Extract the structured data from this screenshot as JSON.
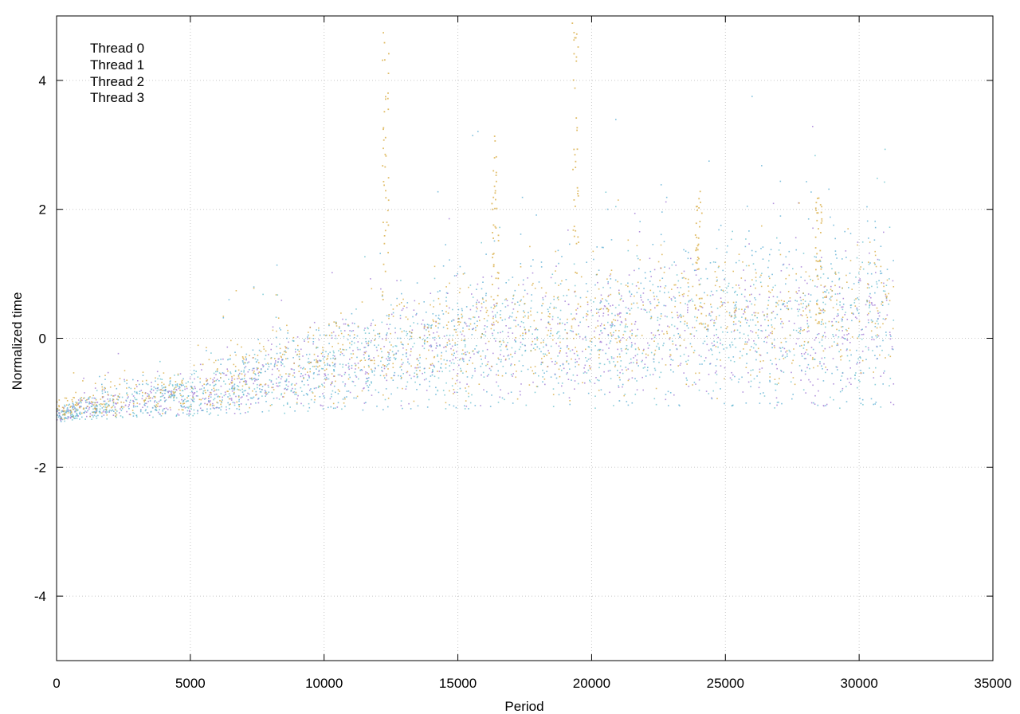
{
  "chart_data": {
    "type": "scatter",
    "title": "",
    "xlabel": "Period",
    "ylabel": "Normalized time",
    "xlim": [
      0,
      35000
    ],
    "ylim": [
      -5,
      5
    ],
    "xticks": [
      0,
      5000,
      10000,
      15000,
      20000,
      25000,
      30000,
      35000
    ],
    "yticks": [
      -4,
      -2,
      0,
      2,
      4
    ],
    "grid": true,
    "legend_position": "top-left",
    "series": [
      {
        "name": "Thread 0",
        "color": "#9467d0",
        "x_range": [
          0,
          31300
        ],
        "baseline": [
          [
            0,
            -1.3
          ],
          [
            2000,
            -1.22
          ],
          [
            5000,
            -1.2
          ],
          [
            10000,
            -1.12
          ],
          [
            15000,
            -1.1
          ],
          [
            20000,
            -1.05
          ],
          [
            25000,
            -1.05
          ],
          [
            31300,
            -1.05
          ]
        ],
        "center": [
          [
            0,
            -1.2
          ],
          [
            2000,
            -1.0
          ],
          [
            5000,
            -0.9
          ],
          [
            8000,
            -0.6
          ],
          [
            10000,
            -0.45
          ],
          [
            12000,
            -0.3
          ],
          [
            15000,
            -0.1
          ],
          [
            20000,
            0.05
          ],
          [
            25000,
            0.1
          ],
          [
            31300,
            0.2
          ]
        ],
        "spread": [
          [
            0,
            0.1
          ],
          [
            2000,
            0.25
          ],
          [
            5000,
            0.35
          ],
          [
            10000,
            0.6
          ],
          [
            15000,
            0.9
          ],
          [
            20000,
            1.0
          ],
          [
            25000,
            1.1
          ],
          [
            31300,
            1.2
          ]
        ]
      },
      {
        "name": "Thread 1",
        "color": "#4aa6cf",
        "x_range": [
          0,
          31300
        ],
        "baseline": [
          [
            0,
            -1.3
          ],
          [
            2000,
            -1.22
          ],
          [
            5000,
            -1.2
          ],
          [
            10000,
            -1.12
          ],
          [
            15000,
            -1.1
          ],
          [
            20000,
            -1.05
          ],
          [
            25000,
            -1.05
          ],
          [
            31300,
            -1.05
          ]
        ],
        "center": [
          [
            0,
            -1.2
          ],
          [
            2000,
            -1.0
          ],
          [
            5000,
            -0.85
          ],
          [
            8000,
            -0.55
          ],
          [
            10000,
            -0.4
          ],
          [
            12000,
            -0.2
          ],
          [
            15000,
            0.0
          ],
          [
            20000,
            0.15
          ],
          [
            25000,
            0.3
          ],
          [
            31300,
            0.4
          ]
        ],
        "spread": [
          [
            0,
            0.1
          ],
          [
            2000,
            0.3
          ],
          [
            5000,
            0.45
          ],
          [
            10000,
            0.8
          ],
          [
            15000,
            1.3
          ],
          [
            20000,
            1.6
          ],
          [
            25000,
            1.7
          ],
          [
            31300,
            1.8
          ]
        ]
      },
      {
        "name": "Thread 2",
        "color": "#5bbcc9",
        "x_range": [
          0,
          31300
        ],
        "baseline": [
          [
            0,
            -1.3
          ],
          [
            2000,
            -1.25
          ],
          [
            5000,
            -1.22
          ],
          [
            10000,
            -1.15
          ],
          [
            15000,
            -1.12
          ],
          [
            20000,
            -1.1
          ],
          [
            25000,
            -1.1
          ],
          [
            31300,
            -1.1
          ]
        ],
        "center": [
          [
            0,
            -1.2
          ],
          [
            2000,
            -1.05
          ],
          [
            5000,
            -0.9
          ],
          [
            8000,
            -0.65
          ],
          [
            10000,
            -0.5
          ],
          [
            12000,
            -0.3
          ],
          [
            15000,
            -0.15
          ],
          [
            20000,
            0.0
          ],
          [
            25000,
            0.1
          ],
          [
            31300,
            0.3
          ]
        ],
        "spread": [
          [
            0,
            0.1
          ],
          [
            2000,
            0.25
          ],
          [
            5000,
            0.4
          ],
          [
            10000,
            0.6
          ],
          [
            15000,
            0.9
          ],
          [
            20000,
            1.0
          ],
          [
            25000,
            1.1
          ],
          [
            31300,
            1.3
          ]
        ]
      },
      {
        "name": "Thread 3",
        "color": "#d4a22a",
        "x_range": [
          0,
          31300
        ],
        "baseline": [
          [
            0,
            -1.3
          ],
          [
            2000,
            -1.22
          ],
          [
            5000,
            -1.15
          ],
          [
            10000,
            -1.05
          ],
          [
            15000,
            -1.0
          ],
          [
            20000,
            -1.0
          ],
          [
            25000,
            -1.0
          ],
          [
            31300,
            -1.0
          ]
        ],
        "center": [
          [
            0,
            -1.1
          ],
          [
            2000,
            -0.95
          ],
          [
            5000,
            -0.8
          ],
          [
            8000,
            -0.45
          ],
          [
            10000,
            -0.3
          ],
          [
            12000,
            -0.1
          ],
          [
            15000,
            0.0
          ],
          [
            20000,
            0.2
          ],
          [
            25000,
            0.3
          ],
          [
            31300,
            0.5
          ]
        ],
        "spread": [
          [
            0,
            0.15
          ],
          [
            2000,
            0.3
          ],
          [
            5000,
            0.45
          ],
          [
            10000,
            0.7
          ],
          [
            15000,
            0.9
          ],
          [
            20000,
            1.0
          ],
          [
            25000,
            1.0
          ],
          [
            31300,
            1.1
          ]
        ],
        "spikes": [
          [
            12300,
            4.8
          ],
          [
            16400,
            3.2
          ],
          [
            19400,
            4.9
          ],
          [
            24000,
            2.3
          ],
          [
            28500,
            2.2
          ]
        ]
      }
    ]
  }
}
